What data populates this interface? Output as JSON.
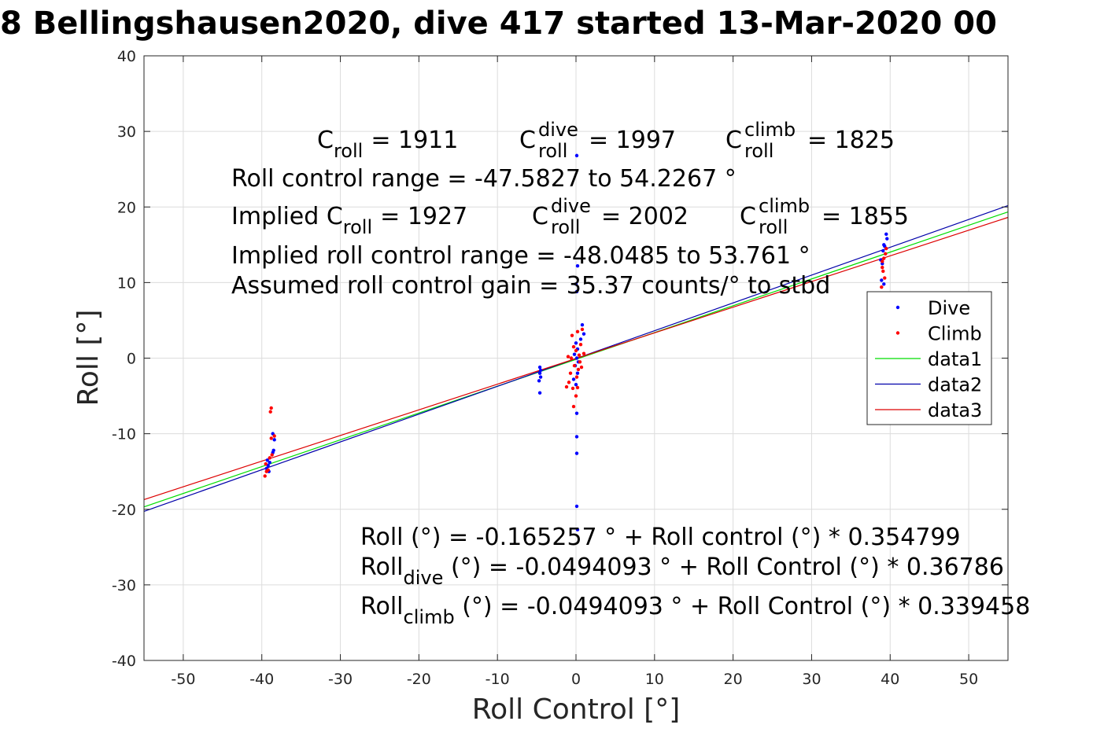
{
  "title": "8 Bellingshausen2020, dive 417 started 13-Mar-2020 00",
  "chart_data": {
    "type": "scatter",
    "xlabel": "Roll Control [°]",
    "ylabel": "Roll [°]",
    "xlim": [
      -55,
      55
    ],
    "ylim": [
      -40,
      40
    ],
    "xticks": [
      -50,
      -40,
      -30,
      -20,
      -10,
      0,
      10,
      20,
      30,
      40,
      50
    ],
    "yticks": [
      -40,
      -30,
      -20,
      -10,
      0,
      10,
      20,
      30,
      40
    ],
    "grid": true,
    "legend_position": "right",
    "legend": [
      "Dive",
      "Climb",
      "data1",
      "data2",
      "data3"
    ],
    "series": [
      {
        "name": "Dive",
        "kind": "points",
        "color": "#0000ff",
        "points": [
          [
            -39.2,
            -14.2
          ],
          [
            -39.4,
            -14.6
          ],
          [
            -39.0,
            -13.8
          ],
          [
            -38.6,
            -12.5
          ],
          [
            -38.5,
            -12.2
          ],
          [
            -38.6,
            -10.0
          ],
          [
            -38.4,
            -10.8
          ],
          [
            -39.1,
            -15.0
          ],
          [
            -39.3,
            -13.5
          ],
          [
            -4.6,
            -1.2
          ],
          [
            -4.6,
            -2.0
          ],
          [
            -4.5,
            -2.5
          ],
          [
            -4.7,
            -3.0
          ],
          [
            -4.6,
            -4.6
          ],
          [
            -4.5,
            -1.6
          ],
          [
            0.1,
            26.8
          ],
          [
            0.2,
            12.2
          ],
          [
            0.0,
            9.8
          ],
          [
            0.1,
            8.8
          ],
          [
            0.0,
            2.0
          ],
          [
            0.2,
            1.2
          ],
          [
            -0.2,
            0.5
          ],
          [
            0.1,
            0.0
          ],
          [
            0.3,
            -0.5
          ],
          [
            -0.1,
            -1.0
          ],
          [
            0.2,
            -2.0
          ],
          [
            -0.3,
            -2.8
          ],
          [
            0.0,
            -3.5
          ],
          [
            0.1,
            -7.3
          ],
          [
            0.1,
            -10.4
          ],
          [
            0.1,
            -12.6
          ],
          [
            0.1,
            -19.6
          ],
          [
            0.2,
            -22.7
          ],
          [
            0.8,
            4.4
          ],
          [
            1.0,
            3.2
          ],
          [
            0.6,
            2.5
          ],
          [
            39.2,
            15.0
          ],
          [
            39.5,
            16.4
          ],
          [
            39.1,
            14.2
          ],
          [
            38.8,
            13.0
          ],
          [
            39.0,
            12.5
          ],
          [
            38.9,
            10.3
          ],
          [
            39.2,
            9.8
          ],
          [
            39.6,
            15.8
          ],
          [
            39.3,
            14.8
          ]
        ]
      },
      {
        "name": "Climb",
        "kind": "points",
        "color": "#ff0000",
        "points": [
          [
            -38.8,
            -6.6
          ],
          [
            -38.9,
            -7.1
          ],
          [
            -38.4,
            -10.3
          ],
          [
            -38.8,
            -10.6
          ],
          [
            -39.5,
            -14.0
          ],
          [
            -39.2,
            -14.8
          ],
          [
            -39.6,
            -15.6
          ],
          [
            -39.0,
            -13.2
          ],
          [
            -38.7,
            -12.8
          ],
          [
            -39.4,
            -15.0
          ],
          [
            -0.5,
            3.0
          ],
          [
            0.2,
            3.5
          ],
          [
            0.8,
            3.8
          ],
          [
            -0.3,
            1.5
          ],
          [
            0.0,
            1.0
          ],
          [
            0.4,
            0.4
          ],
          [
            -0.6,
            0.0
          ],
          [
            0.5,
            -0.5
          ],
          [
            -0.2,
            -1.0
          ],
          [
            0.3,
            -1.5
          ],
          [
            -0.7,
            -2.0
          ],
          [
            0.1,
            -2.5
          ],
          [
            -0.9,
            -3.2
          ],
          [
            -1.2,
            -3.8
          ],
          [
            -0.4,
            -4.0
          ],
          [
            0.2,
            -3.9
          ],
          [
            -0.3,
            -6.4
          ],
          [
            0.0,
            -5.0
          ],
          [
            0.6,
            1.8
          ],
          [
            1.0,
            0.6
          ],
          [
            -1.0,
            0.2
          ],
          [
            0.7,
            -1.2
          ]
        ],
        "extra": [
          [
            39.2,
            13.2
          ],
          [
            39.0,
            12.0
          ],
          [
            39.4,
            13.8
          ],
          [
            39.1,
            11.5
          ],
          [
            38.9,
            9.4
          ],
          [
            39.3,
            10.6
          ],
          [
            39.5,
            14.5
          ],
          [
            39.0,
            12.8
          ]
        ]
      },
      {
        "name": "data1",
        "kind": "line",
        "color": "#00dd00",
        "intercept": -0.165257,
        "slope": 0.354799
      },
      {
        "name": "data2",
        "kind": "line",
        "color": "#0000aa",
        "intercept": -0.0494093,
        "slope": 0.36786
      },
      {
        "name": "data3",
        "kind": "line",
        "color": "#dd0000",
        "intercept": -0.0494093,
        "slope": 0.339458
      }
    ],
    "annotations": {
      "c_roll": {
        "base": "C",
        "sub": "roll",
        "value": "= 1911"
      },
      "c_roll_dive": {
        "base": "C",
        "sup": "dive",
        "sub": "roll",
        "value": "= 1997"
      },
      "c_roll_climb": {
        "base": "C",
        "sup": "climb",
        "sub": "roll",
        "value": "= 1825"
      },
      "range_line": "Roll control range = -47.5827 to 54.2267 °",
      "implied_prefix": "Implied C",
      "implied_sub": "roll",
      "implied_value": "= 1927",
      "implied_dive": {
        "base": "C",
        "sup": "dive",
        "sub": "roll",
        "value": "= 2002"
      },
      "implied_climb": {
        "base": "C",
        "sup": "climb",
        "sub": "roll",
        "value": "= 1855"
      },
      "implied_range_line": "Implied roll control range = -48.0485 to 53.761 °",
      "gain_line": "Assumed roll control gain = 35.37 counts/° to stbd",
      "fit_line": "Roll (°) = -0.165257 ° + Roll control (°) * 0.354799",
      "fit_dive_base": "Roll",
      "fit_dive_sub": "dive",
      "fit_dive_rest": " (°) = -0.0494093 ° + Roll Control (°) * 0.36786",
      "fit_climb_base": "Roll",
      "fit_climb_sub": "climb",
      "fit_climb_rest": " (°) = -0.0494093 ° + Roll Control (°) * 0.339458"
    }
  }
}
